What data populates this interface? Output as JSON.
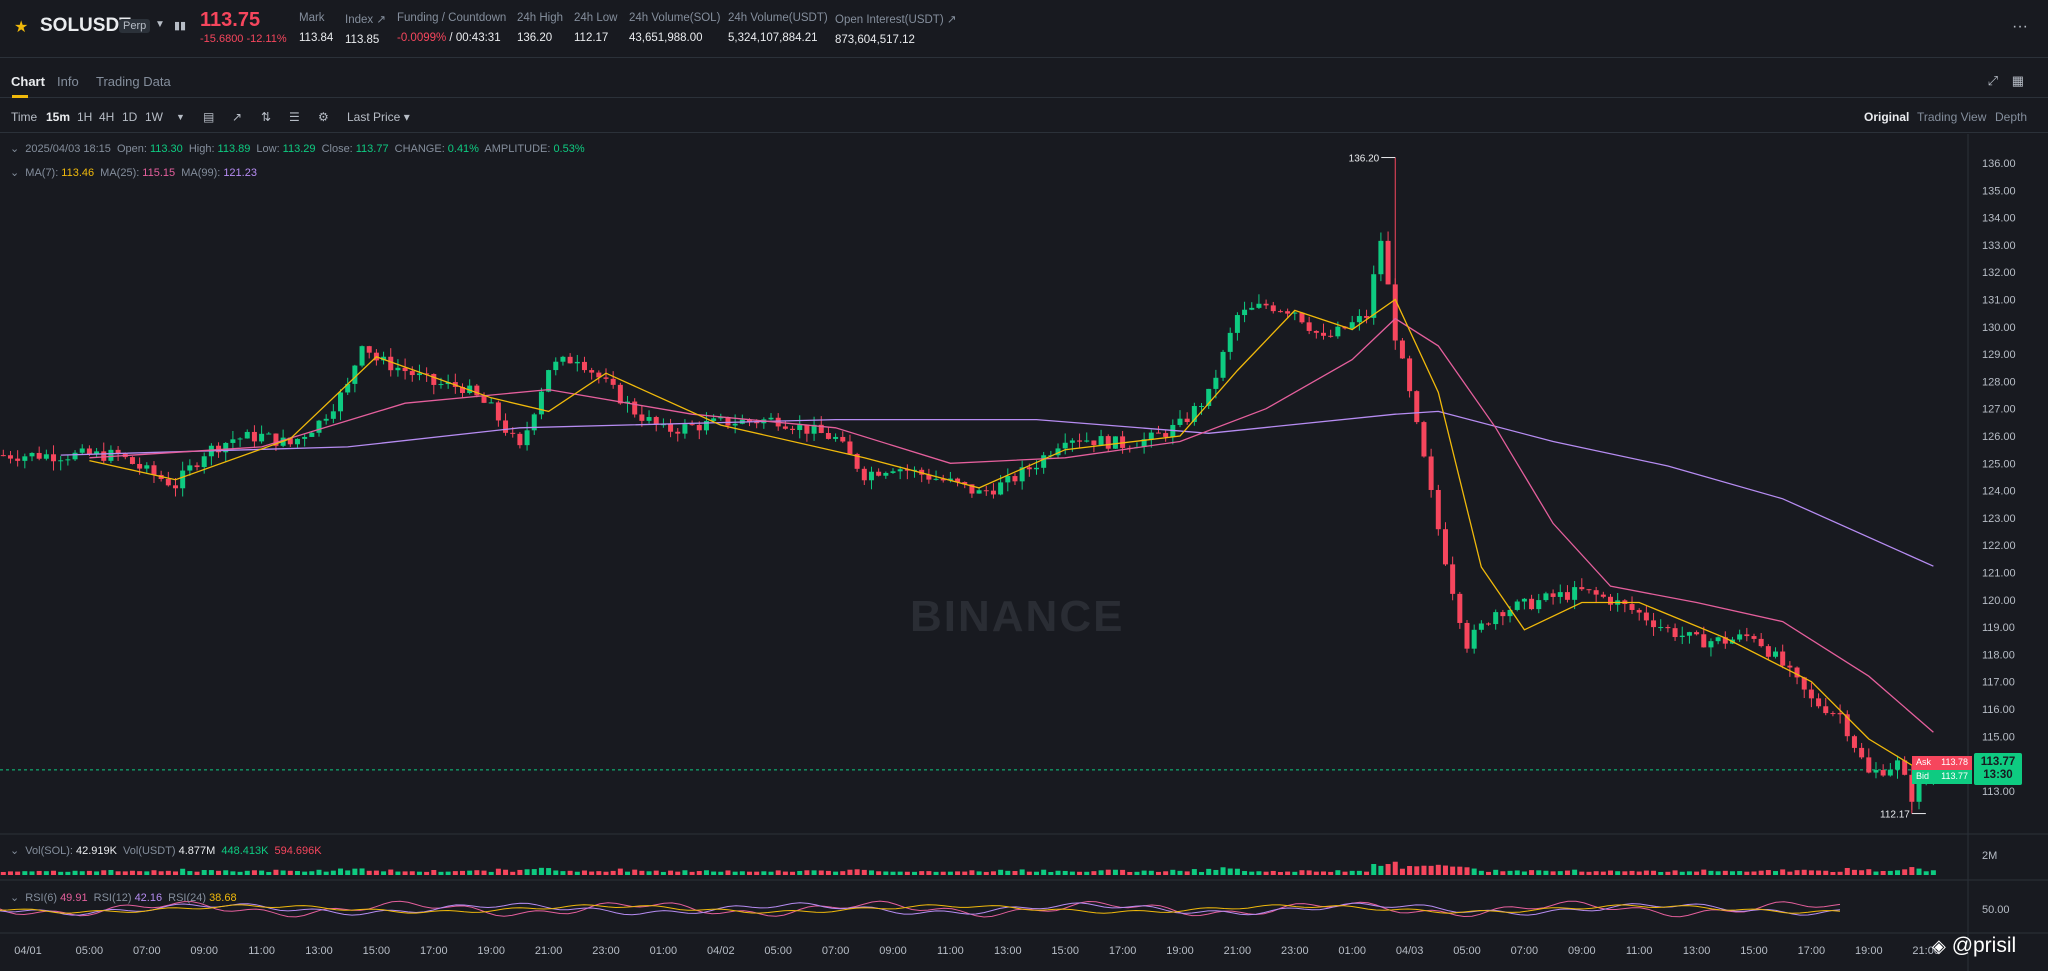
{
  "header": {
    "symbol": "SOLUSDT",
    "contract_badge": "Perp",
    "last_price": "113.75",
    "change": "-15.6800 -12.11%",
    "stats": [
      {
        "label": "Mark",
        "value": "113.84"
      },
      {
        "label": "Index ↗",
        "value": "113.85"
      },
      {
        "label": "Funding / Countdown",
        "value": "-0.0099%",
        "value2": " / 00:43:31"
      },
      {
        "label": "24h High",
        "value": "136.20"
      },
      {
        "label": "24h Low",
        "value": "112.17"
      },
      {
        "label": "24h Volume(SOL)",
        "value": "43,651,988.00"
      },
      {
        "label": "24h Volume(USDT)",
        "value": "5,324,107,884.21"
      },
      {
        "label": "Open Interest(USDT) ↗",
        "value": "873,604,517.12"
      }
    ],
    "more_label": "···"
  },
  "tabs": [
    {
      "label": "Chart"
    },
    {
      "label": "Info"
    },
    {
      "label": "Trading Data"
    }
  ],
  "toolbar": {
    "intervals": [
      "Time",
      "15m",
      "1H",
      "4H",
      "1D",
      "1W"
    ],
    "active_interval": "15m",
    "price_type": "Last Price ▾",
    "views": [
      "Original",
      "Trading View",
      "Depth"
    ],
    "active_view": "Original"
  },
  "legend": {
    "ohlc": {
      "date": "2025/04/03 18:15",
      "open_label": "Open:",
      "open": "113.30",
      "high_label": "High:",
      "high": "113.89",
      "low_label": "Low:",
      "low": "113.29",
      "close_label": "Close:",
      "close": "113.77",
      "change_label": "CHANGE:",
      "change": "0.41%",
      "amplitude_label": "AMPLITUDE:",
      "amplitude": "0.53%"
    },
    "ma": {
      "ma7_label": "MA(7):",
      "ma7": "113.46",
      "ma25_label": "MA(25):",
      "ma25": "115.15",
      "ma99_label": "MA(99):",
      "ma99": "121.23"
    },
    "vol": {
      "sol_label": "Vol(SOL):",
      "sol": "42.919K",
      "usdt_label": "Vol(USDT)",
      "usdt": "4.877M",
      "v1": "448.413K",
      "v2": "594.696K"
    },
    "rsi": {
      "rsi6_label": "RSI(6)",
      "rsi6": "49.91",
      "rsi12_label": "RSI(12)",
      "rsi12": "42.16",
      "rsi24_label": "RSI(24)",
      "rsi24": "38.68"
    }
  },
  "price_marker": {
    "price": "113.77",
    "countdown": "13:30",
    "ask_label": "Ask",
    "ask": "113.78",
    "bid_label": "Bid",
    "bid": "113.77"
  },
  "watermark": "BINANCE",
  "user_handle": "@prisil",
  "colors": {
    "up": "#0ecb81",
    "down": "#f6465d",
    "ma7": "#f0b90b",
    "ma25": "#e45f9c",
    "ma99": "#b68cf2",
    "accent": "#f0b90b"
  },
  "chart_data": {
    "type": "candlestick",
    "interval": "15m",
    "y_axis": {
      "range": [
        112,
        136.6
      ],
      "ticks": [
        "136.00",
        "135.00",
        "134.00",
        "133.00",
        "132.00",
        "131.00",
        "130.00",
        "129.00",
        "128.00",
        "127.00",
        "126.00",
        "125.00",
        "124.00",
        "123.00",
        "122.00",
        "121.00",
        "120.00",
        "119.00",
        "118.00",
        "117.00",
        "116.00",
        "115.00",
        "114.00",
        "113.00"
      ]
    },
    "x_axis": {
      "ticks": [
        "04/01",
        "05:00",
        "07:00",
        "09:00",
        "11:00",
        "13:00",
        "15:00",
        "17:00",
        "19:00",
        "21:00",
        "23:00",
        "01:00",
        "04/02",
        "05:00",
        "07:00",
        "09:00",
        "11:00",
        "13:00",
        "15:00",
        "17:00",
        "19:00",
        "21:00",
        "23:00",
        "01:00",
        "04/03",
        "05:00",
        "07:00",
        "09:00",
        "11:00",
        "13:00",
        "15:00",
        "17:00",
        "19:00",
        "21:00"
      ]
    },
    "high_label": "136.20",
    "low_label": "112.17",
    "close_path": [
      [
        "04/01 03:00",
        125.3
      ],
      [
        "04/01 04:00",
        124.7
      ],
      [
        "04/01 05:00",
        124.2
      ],
      [
        "04/01 06:00",
        125.4
      ],
      [
        "04/01 07:00",
        125.9
      ],
      [
        "04/01 08:00",
        126.0
      ],
      [
        "04/01 09:00",
        125.7
      ],
      [
        "04/01 10:00",
        126.5
      ],
      [
        "04/01 11:00",
        127.8
      ],
      [
        "04/01 11:30",
        129.5
      ],
      [
        "04/01 12:00",
        128.8
      ],
      [
        "04/01 13:00",
        128.4
      ],
      [
        "04/01 14:00",
        127.9
      ],
      [
        "04/01 15:00",
        127.8
      ],
      [
        "04/01 16:00",
        127.0
      ],
      [
        "04/01 17:00",
        125.5
      ],
      [
        "04/01 18:00",
        128.5
      ],
      [
        "04/01 19:00",
        128.9
      ],
      [
        "04/01 20:00",
        127.9
      ],
      [
        "04/01 21:00",
        126.9
      ],
      [
        "04/01 22:00",
        126.2
      ],
      [
        "04/02 00:00",
        126.5
      ],
      [
        "04/02 02:00",
        126.6
      ],
      [
        "04/02 04:00",
        125.9
      ],
      [
        "04/02 05:00",
        124.6
      ],
      [
        "04/02 06:00",
        124.9
      ],
      [
        "04/02 08:00",
        124.3
      ],
      [
        "04/02 09:00",
        123.9
      ],
      [
        "04/02 10:00",
        124.3
      ],
      [
        "04/02 11:00",
        125.0
      ],
      [
        "04/02 12:00",
        126.0
      ],
      [
        "04/02 14:00",
        125.7
      ],
      [
        "04/02 15:00",
        125.9
      ],
      [
        "04/02 16:00",
        126.4
      ],
      [
        "04/02 17:00",
        127.5
      ],
      [
        "04/02 18:00",
        130.4
      ],
      [
        "04/02 19:00",
        130.8
      ],
      [
        "04/02 20:00",
        130.6
      ],
      [
        "04/02 21:00",
        129.5
      ],
      [
        "04/02 22:00",
        130.1
      ],
      [
        "04/02 22:30",
        130.4
      ],
      [
        "04/02 23:00",
        133.2
      ],
      [
        "04/02 23:30",
        129.7
      ],
      [
        "04/03 00:00",
        127.5
      ],
      [
        "04/03 00:30",
        125.1
      ],
      [
        "04/03 01:00",
        122.6
      ],
      [
        "04/03 01:30",
        120.4
      ],
      [
        "04/03 02:00",
        118.4
      ],
      [
        "04/03 02:30",
        119.0
      ],
      [
        "04/03 03:00",
        119.6
      ],
      [
        "04/03 04:00",
        119.8
      ],
      [
        "04/03 05:00",
        120.1
      ],
      [
        "04/03 06:00",
        120.3
      ],
      [
        "04/03 07:00",
        120.0
      ],
      [
        "04/03 08:00",
        119.5
      ],
      [
        "04/03 09:00",
        118.9
      ],
      [
        "04/03 10:00",
        118.5
      ],
      [
        "04/03 11:00",
        118.5
      ],
      [
        "04/03 12:00",
        118.7
      ],
      [
        "04/03 13:00",
        117.6
      ],
      [
        "04/03 14:00",
        116.3
      ],
      [
        "04/03 15:00",
        115.8
      ],
      [
        "04/03 16:00",
        113.6
      ],
      [
        "04/03 17:00",
        114.0
      ],
      [
        "04/03 17:30",
        112.8
      ],
      [
        "04/03 18:15",
        113.77
      ]
    ],
    "ma99_path": [
      [
        "04/01 01:00",
        125.3
      ],
      [
        "04/01 11:00",
        125.6
      ],
      [
        "04/01 17:00",
        126.3
      ],
      [
        "04/02 04:00",
        126.6
      ],
      [
        "04/02 11:00",
        126.6
      ],
      [
        "04/02 17:00",
        126.1
      ],
      [
        "04/02 23:30",
        126.8
      ],
      [
        "04/03 01:00",
        126.9
      ],
      [
        "04/03 05:00",
        125.8
      ],
      [
        "04/03 09:00",
        124.9
      ],
      [
        "04/03 13:00",
        123.7
      ],
      [
        "04/03 18:15",
        121.23
      ]
    ],
    "ma25_path": [
      [
        "04/01 02:00",
        125.2
      ],
      [
        "04/01 08:00",
        125.6
      ],
      [
        "04/01 13:00",
        127.2
      ],
      [
        "04/01 18:00",
        127.7
      ],
      [
        "04/01 23:00",
        126.8
      ],
      [
        "04/02 04:00",
        126.3
      ],
      [
        "04/02 08:00",
        125.0
      ],
      [
        "04/02 12:00",
        125.2
      ],
      [
        "04/02 16:00",
        125.8
      ],
      [
        "04/02 19:00",
        127.0
      ],
      [
        "04/02 22:00",
        128.8
      ],
      [
        "04/02 23:30",
        130.3
      ],
      [
        "04/03 01:00",
        129.3
      ],
      [
        "04/03 03:00",
        126.3
      ],
      [
        "04/03 05:00",
        122.8
      ],
      [
        "04/03 07:00",
        120.5
      ],
      [
        "04/03 10:00",
        119.9
      ],
      [
        "04/03 13:00",
        119.2
      ],
      [
        "04/03 16:00",
        117.2
      ],
      [
        "04/03 18:15",
        115.15
      ]
    ],
    "ma7_path": [
      [
        "04/01 02:00",
        125.1
      ],
      [
        "04/01 05:00",
        124.4
      ],
      [
        "04/01 09:00",
        125.9
      ],
      [
        "04/01 12:00",
        128.9
      ],
      [
        "04/01 16:00",
        127.4
      ],
      [
        "04/01 18:00",
        126.9
      ],
      [
        "04/01 20:00",
        128.3
      ],
      [
        "04/02 00:00",
        126.4
      ],
      [
        "04/02 05:00",
        125.2
      ],
      [
        "04/02 09:00",
        124.1
      ],
      [
        "04/02 12:00",
        125.5
      ],
      [
        "04/02 16:00",
        126.0
      ],
      [
        "04/02 18:00",
        128.4
      ],
      [
        "04/02 20:00",
        130.6
      ],
      [
        "04/02 22:00",
        129.9
      ],
      [
        "04/02 23:30",
        131.0
      ],
      [
        "04/03 01:00",
        127.6
      ],
      [
        "04/03 02:30",
        121.2
      ],
      [
        "04/03 04:00",
        118.9
      ],
      [
        "04/03 06:00",
        119.9
      ],
      [
        "04/03 08:00",
        119.9
      ],
      [
        "04/03 11:00",
        118.6
      ],
      [
        "04/03 14:00",
        117.0
      ],
      [
        "04/03 16:00",
        114.9
      ],
      [
        "04/03 18:15",
        113.46
      ]
    ],
    "volume_axis_label": "2M",
    "rsi_axis_label": "50.00"
  }
}
